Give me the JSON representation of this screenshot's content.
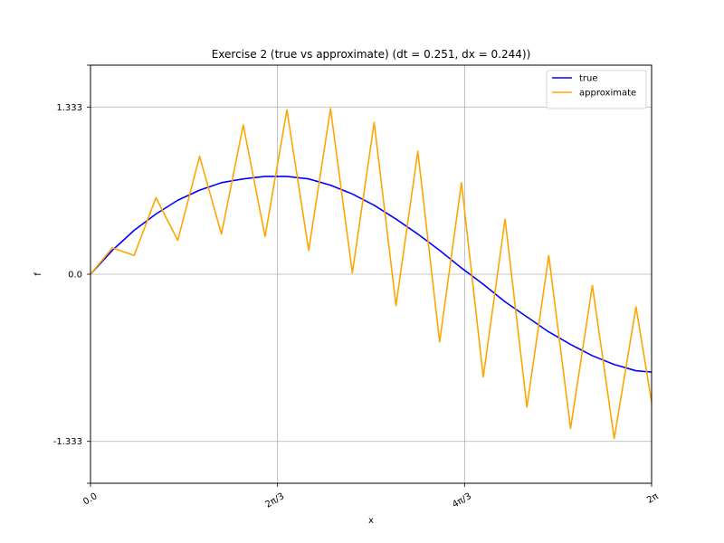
{
  "chart_data": {
    "type": "line",
    "title": "Exercise 2 (true vs approximate) (dt = 0.251, dx = 0.244))",
    "xlabel": "x",
    "ylabel": "f",
    "xlim": [
      0,
      6.2832
    ],
    "ylim": [
      -1.667,
      1.667
    ],
    "grid": true,
    "legend_position": "top-right",
    "x_ticks": [
      {
        "value": 0,
        "label": "0.0"
      },
      {
        "value": 2.0944,
        "label": "2π/3"
      },
      {
        "value": 4.1888,
        "label": "4π/3"
      },
      {
        "value": 6.2832,
        "label": "2π"
      }
    ],
    "y_ticks": [
      {
        "value": -1.333,
        "label": "-1.333"
      },
      {
        "value": 0,
        "label": "0.0"
      },
      {
        "value": 1.333,
        "label": "1.333"
      }
    ],
    "x": [
      0,
      0.2443,
      0.4887,
      0.733,
      0.9774,
      1.2217,
      1.4661,
      1.7104,
      1.9548,
      2.1991,
      2.4435,
      2.6878,
      2.9322,
      3.1765,
      3.4209,
      3.6652,
      3.9096,
      4.1539,
      4.3983,
      4.6426,
      4.887,
      5.1313,
      5.3757,
      5.62,
      5.8644,
      6.1087,
      6.2832
    ],
    "series": [
      {
        "name": "true",
        "color": "#0000ff",
        "values": [
          0,
          0.19,
          0.35,
          0.48,
          0.59,
          0.67,
          0.73,
          0.76,
          0.78,
          0.78,
          0.76,
          0.71,
          0.64,
          0.55,
          0.44,
          0.32,
          0.19,
          0.05,
          -0.08,
          -0.22,
          -0.34,
          -0.46,
          -0.56,
          -0.65,
          -0.72,
          -0.77,
          -0.78
        ]
      },
      {
        "name": "approximate",
        "color": "#ffa500",
        "values": [
          0,
          0.21,
          0.15,
          0.61,
          0.27,
          0.94,
          0.32,
          1.19,
          0.3,
          1.31,
          0.19,
          1.32,
          0.01,
          1.21,
          -0.25,
          0.98,
          -0.54,
          0.73,
          -0.82,
          0.44,
          -1.06,
          0.15,
          -1.23,
          -0.09,
          -1.31,
          -0.26,
          -1.02
        ]
      }
    ]
  }
}
